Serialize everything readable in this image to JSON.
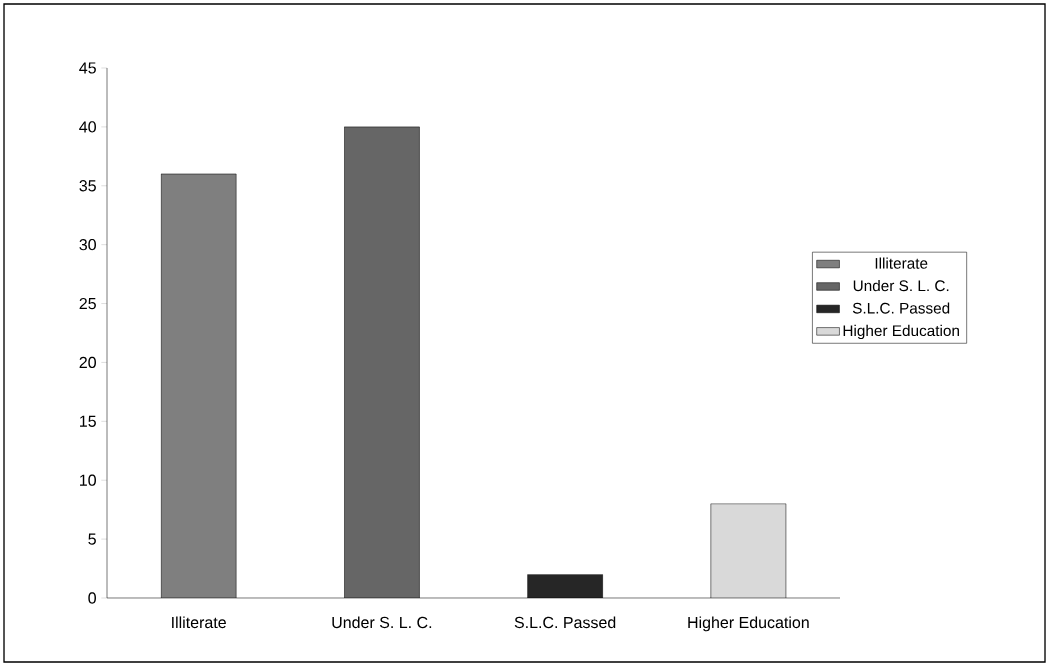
{
  "chart_data": {
    "type": "bar",
    "categories": [
      "Illiterate",
      "Under S. L. C.",
      "S.L.C. Passed",
      "Higher Education"
    ],
    "series": [
      {
        "name": "Illiterate",
        "color": "#7f7f7f",
        "values": [
          36,
          null,
          null,
          null
        ]
      },
      {
        "name": "Under S. L. C.",
        "color": "#666666",
        "values": [
          null,
          40,
          null,
          null
        ]
      },
      {
        "name": "S.L.C. Passed",
        "color": "#262626",
        "values": [
          null,
          null,
          2,
          null
        ]
      },
      {
        "name": "Higher Education",
        "color": "#d9d9d9",
        "values": [
          null,
          null,
          null,
          8
        ]
      }
    ],
    "ylim": [
      0,
      45
    ],
    "yticks": [
      0,
      5,
      10,
      15,
      20,
      25,
      30,
      35,
      40,
      45
    ],
    "grid": false,
    "legend": "right"
  }
}
